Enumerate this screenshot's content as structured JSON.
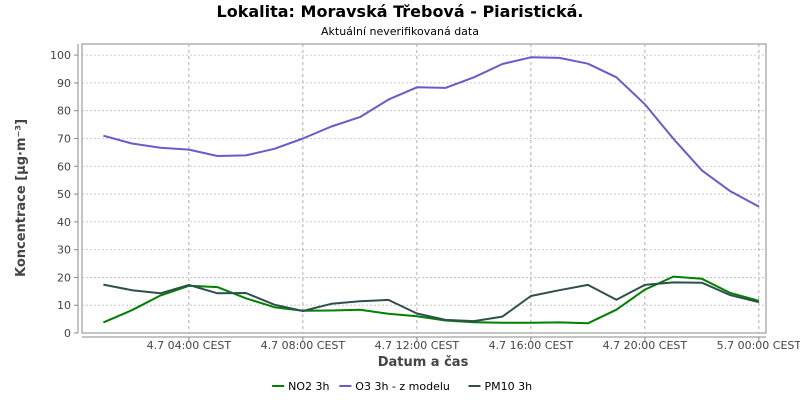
{
  "chart_data": {
    "type": "line",
    "title": "Lokalita: Moravská Třebová - Piaristická.",
    "subtitle": "Aktuální neverifikovaná data",
    "xlabel": "Datum a čas",
    "ylabel": "Koncentrace [µg·m⁻³]",
    "ylim": [
      0,
      104
    ],
    "yticks": [
      0,
      10,
      20,
      30,
      40,
      50,
      60,
      70,
      80,
      90,
      100
    ],
    "xlim": [
      "2023-07-04 00:15",
      "2023-07-05 00:15"
    ],
    "xticks": [
      {
        "x": "2023-07-04 04:00",
        "label": "4.7 04:00 CEST"
      },
      {
        "x": "2023-07-04 08:00",
        "label": "4.7 08:00 CEST"
      },
      {
        "x": "2023-07-04 12:00",
        "label": "4.7 12:00 CEST"
      },
      {
        "x": "2023-07-04 16:00",
        "label": "4.7 16:00 CEST"
      },
      {
        "x": "2023-07-04 20:00",
        "label": "4.7 20:00 CEST"
      },
      {
        "x": "2023-07-05 00:00",
        "label": "5.7 00:00 CEST"
      }
    ],
    "grid": true,
    "legend_position": "bottom",
    "x": [
      "2023-07-04 01:00",
      "2023-07-04 02:00",
      "2023-07-04 03:00",
      "2023-07-04 04:00",
      "2023-07-04 05:00",
      "2023-07-04 06:00",
      "2023-07-04 07:00",
      "2023-07-04 08:00",
      "2023-07-04 09:00",
      "2023-07-04 10:00",
      "2023-07-04 11:00",
      "2023-07-04 12:00",
      "2023-07-04 13:00",
      "2023-07-04 14:00",
      "2023-07-04 15:00",
      "2023-07-04 16:00",
      "2023-07-04 17:00",
      "2023-07-04 18:00",
      "2023-07-04 19:00",
      "2023-07-04 20:00",
      "2023-07-04 21:00",
      "2023-07-04 22:00",
      "2023-07-04 23:00",
      "2023-07-05 00:00"
    ],
    "series": [
      {
        "name": "NO2 3h",
        "color": "#008000",
        "values": [
          3.8,
          8.2,
          13.5,
          17.0,
          16.5,
          12.5,
          9.3,
          8.0,
          8.1,
          8.4,
          6.9,
          6.0,
          4.5,
          3.9,
          3.7,
          3.7,
          3.8,
          3.5,
          8.4,
          15.6,
          20.3,
          19.5,
          14.4,
          11.6
        ]
      },
      {
        "name": "O3 3h - z modelu",
        "color": "#6a5acd",
        "values": [
          71.0,
          68.2,
          66.7,
          66.0,
          63.7,
          63.9,
          66.3,
          70.0,
          74.3,
          77.7,
          84.0,
          88.4,
          88.2,
          92.0,
          96.8,
          99.2,
          99.0,
          96.9,
          92.0,
          82.3,
          69.9,
          58.5,
          51.0,
          45.5
        ]
      },
      {
        "name": "PM10 3h",
        "color": "#2f4f4f",
        "values": [
          17.4,
          15.4,
          14.3,
          17.3,
          14.3,
          14.4,
          10.2,
          7.9,
          10.5,
          11.4,
          11.9,
          7.0,
          4.7,
          4.3,
          5.9,
          13.3,
          15.4,
          17.3,
          12.0,
          17.3,
          18.2,
          18.1,
          13.6,
          11.1
        ]
      }
    ]
  }
}
